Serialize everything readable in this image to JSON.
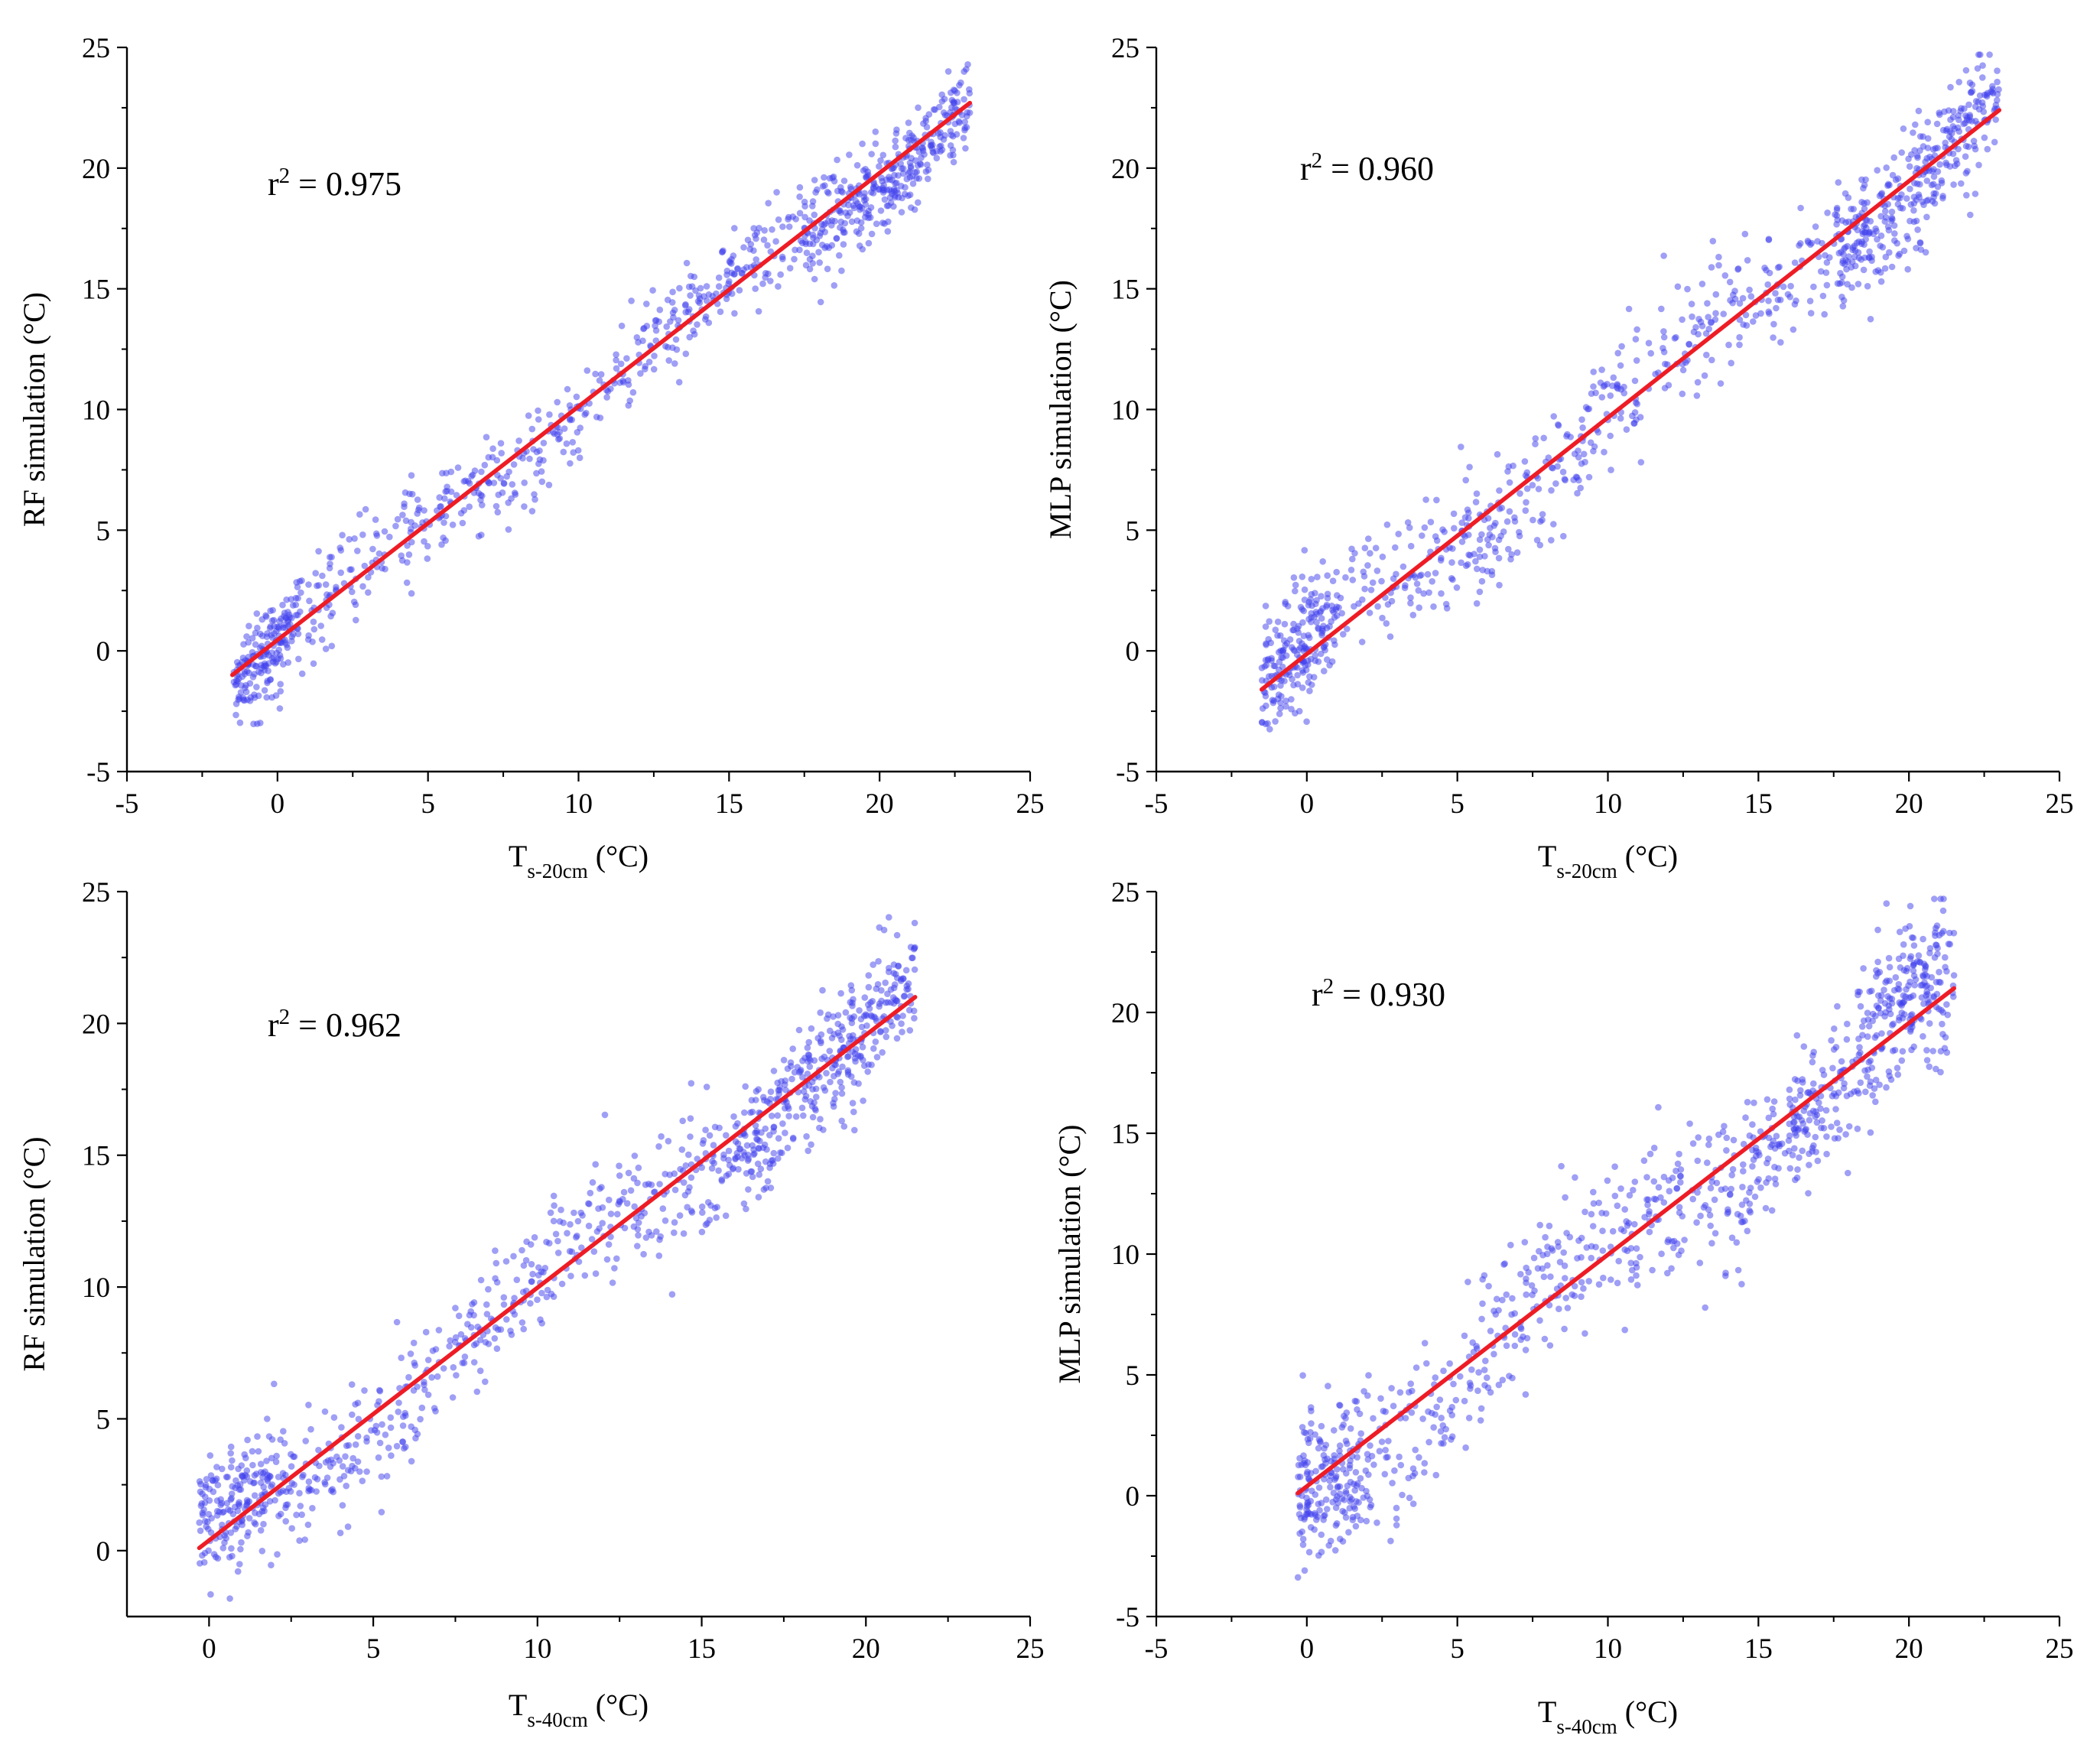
{
  "chart_data": [
    {
      "type": "scatter",
      "id": "a",
      "xlabel_main": "T",
      "xlabel_sub": "s-20cm",
      "xlabel_unit": " (°C)",
      "ylabel": "RF simulation  (°C)",
      "xlim": [
        -5,
        25
      ],
      "ylim": [
        -5,
        25
      ],
      "xticks": [
        -5,
        0,
        5,
        10,
        15,
        20,
        25
      ],
      "yticks": [
        -5,
        0,
        5,
        10,
        15,
        20,
        25
      ],
      "annotation": {
        "prefix": "r",
        "sup": "2",
        "text": " = 0.975"
      },
      "fit_line": {
        "x": [
          -1.5,
          23
        ],
        "y": [
          -1.0,
          22.7
        ],
        "color": "#ee1c25"
      },
      "scatter": {
        "color": "#4040ee",
        "n": 1000,
        "noise": 1.1,
        "x_min": -1.5,
        "x_max": 23
      }
    },
    {
      "type": "scatter",
      "id": "b",
      "xlabel_main": "T",
      "xlabel_sub": "s-20cm",
      "xlabel_unit": " (°C)",
      "ylabel": "MLP simulation  (°C)",
      "xlim": [
        -5,
        25
      ],
      "ylim": [
        -5,
        25
      ],
      "xticks": [
        -5,
        0,
        5,
        10,
        15,
        20,
        25
      ],
      "yticks": [
        -5,
        0,
        5,
        10,
        15,
        20,
        25
      ],
      "annotation": {
        "prefix": "r",
        "sup": "2",
        "text": " = 0.960"
      },
      "fit_line": {
        "x": [
          -1.5,
          23
        ],
        "y": [
          -1.6,
          22.4
        ],
        "color": "#ee1c25"
      },
      "scatter": {
        "color": "#4040ee",
        "n": 1000,
        "noise": 1.5,
        "x_min": -1.5,
        "x_max": 23
      }
    },
    {
      "type": "scatter",
      "id": "c",
      "xlabel_main": "T",
      "xlabel_sub": "s-40cm",
      "xlabel_unit": " (°C)",
      "ylabel": "RF simulation  (°C)",
      "xlim": [
        -2.5,
        25
      ],
      "ylim": [
        -2.5,
        25
      ],
      "xticks": [
        0,
        5,
        10,
        15,
        20,
        25
      ],
      "yticks": [
        0,
        5,
        10,
        15,
        20,
        25
      ],
      "annotation": {
        "prefix": "r",
        "sup": "2",
        "text": " = 0.962"
      },
      "fit_line": {
        "x": [
          -0.3,
          21.5
        ],
        "y": [
          0.1,
          21.0
        ],
        "color": "#ee1c25"
      },
      "scatter": {
        "color": "#4040ee",
        "n": 1000,
        "noise": 1.4,
        "x_min": -0.3,
        "x_max": 21.5
      }
    },
    {
      "type": "scatter",
      "id": "d",
      "xlabel_main": "T",
      "xlabel_sub": "s-40cm",
      "xlabel_unit": " (°C)",
      "ylabel": "MLP simulation  (°C)",
      "xlim": [
        -5,
        25
      ],
      "ylim": [
        -5,
        25
      ],
      "xticks": [
        -5,
        0,
        5,
        10,
        15,
        20,
        25
      ],
      "yticks": [
        -5,
        0,
        5,
        10,
        15,
        20,
        25
      ],
      "annotation": {
        "prefix": "r",
        "sup": "2",
        "text": " = 0.930"
      },
      "fit_line": {
        "x": [
          -0.3,
          21.5
        ],
        "y": [
          0.1,
          21.0
        ],
        "color": "#ee1c25"
      },
      "scatter": {
        "color": "#4040ee",
        "n": 1000,
        "noise": 1.9,
        "x_min": -0.3,
        "x_max": 21.5
      }
    }
  ]
}
